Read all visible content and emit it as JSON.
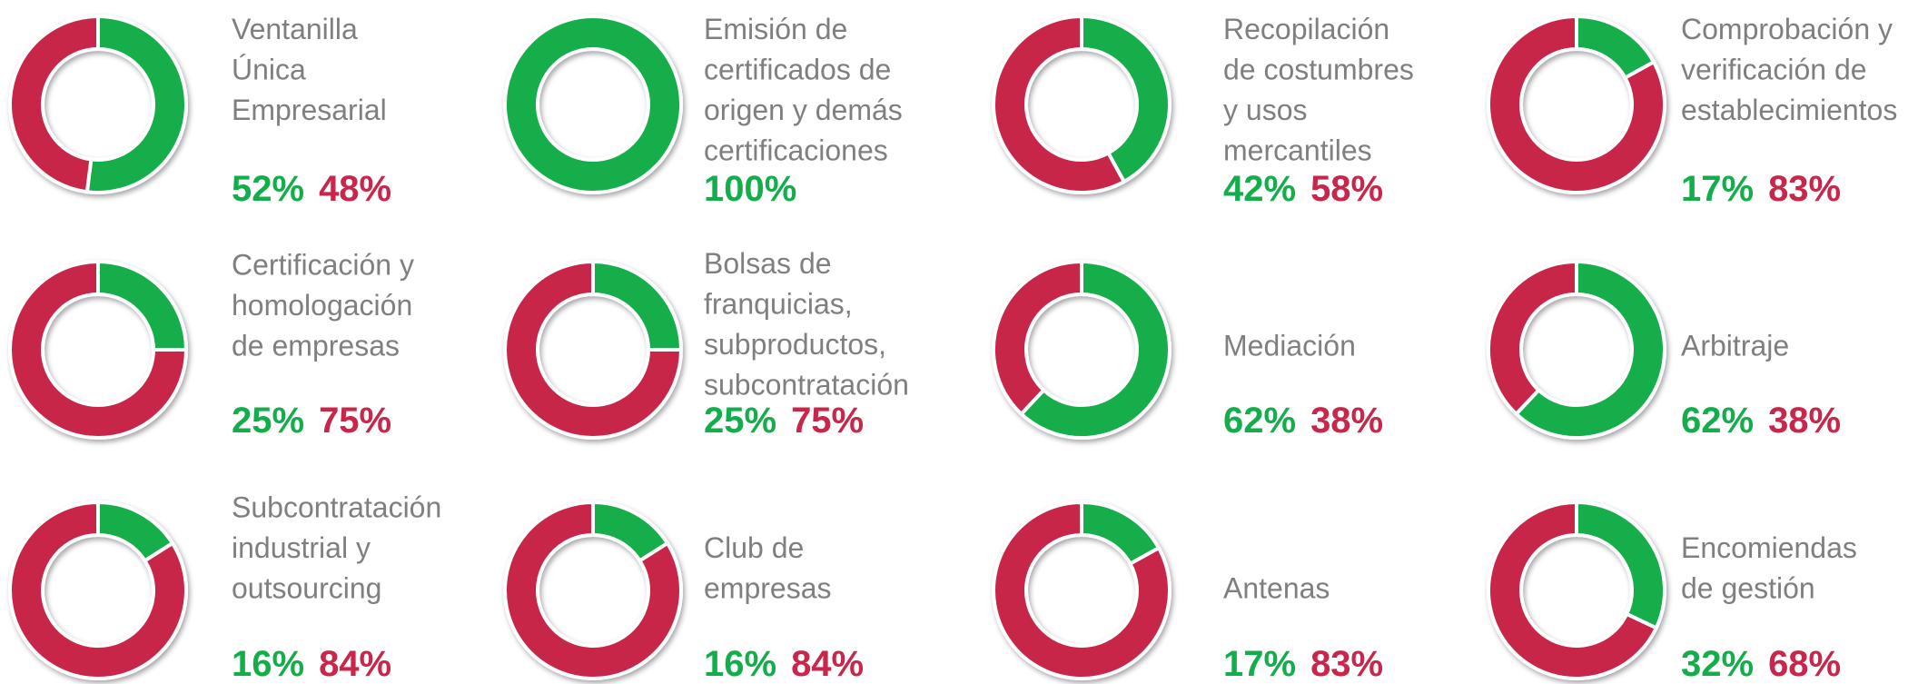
{
  "chart_data": [
    {
      "type": "pie",
      "title": [
        "Ventanilla",
        "Única",
        "Empresarial"
      ],
      "values": [
        52,
        48
      ],
      "value_labels": [
        "52%",
        "48%"
      ],
      "colors": [
        "#14ad4b",
        "#c8264a"
      ]
    },
    {
      "type": "pie",
      "title": [
        "Emisión de",
        "certificados de",
        "origen y demás",
        "certificaciones"
      ],
      "values": [
        100
      ],
      "value_labels": [
        "100%"
      ],
      "colors": [
        "#14ad4b"
      ]
    },
    {
      "type": "pie",
      "title": [
        "Recopilación",
        "de costumbres",
        "y usos",
        "mercantiles"
      ],
      "values": [
        42,
        58
      ],
      "value_labels": [
        "42%",
        "58%"
      ],
      "colors": [
        "#14ad4b",
        "#c8264a"
      ]
    },
    {
      "type": "pie",
      "title": [
        "Comprobación y",
        "verificación de",
        "establecimientos"
      ],
      "values": [
        17,
        83
      ],
      "value_labels": [
        "17%",
        "83%"
      ],
      "colors": [
        "#14ad4b",
        "#c8264a"
      ]
    },
    {
      "type": "pie",
      "title": [
        "Certificación y",
        "homologación",
        "de empresas"
      ],
      "values": [
        25,
        75
      ],
      "value_labels": [
        "25%",
        "75%"
      ],
      "colors": [
        "#14ad4b",
        "#c8264a"
      ]
    },
    {
      "type": "pie",
      "title": [
        "Bolsas de",
        "franquicias,",
        "subproductos,",
        "subcontratación"
      ],
      "values": [
        25,
        75
      ],
      "value_labels": [
        "25%",
        "75%"
      ],
      "colors": [
        "#14ad4b",
        "#c8264a"
      ]
    },
    {
      "type": "pie",
      "title": [
        "Mediación"
      ],
      "values": [
        62,
        38
      ],
      "value_labels": [
        "62%",
        "38%"
      ],
      "colors": [
        "#14ad4b",
        "#c8264a"
      ]
    },
    {
      "type": "pie",
      "title": [
        "Arbitraje"
      ],
      "values": [
        62,
        38
      ],
      "value_labels": [
        "62%",
        "38%"
      ],
      "colors": [
        "#14ad4b",
        "#c8264a"
      ]
    },
    {
      "type": "pie",
      "title": [
        "Subcontratación",
        "industrial y",
        "outsourcing"
      ],
      "values": [
        16,
        84
      ],
      "value_labels": [
        "16%",
        "84%"
      ],
      "colors": [
        "#14ad4b",
        "#c8264a"
      ]
    },
    {
      "type": "pie",
      "title": [
        "Club de",
        "empresas"
      ],
      "values": [
        16,
        84
      ],
      "value_labels": [
        "16%",
        "84%"
      ],
      "colors": [
        "#14ad4b",
        "#c8264a"
      ]
    },
    {
      "type": "pie",
      "title": [
        "Antenas"
      ],
      "values": [
        17,
        83
      ],
      "value_labels": [
        "17%",
        "83%"
      ],
      "colors": [
        "#14ad4b",
        "#c8264a"
      ]
    },
    {
      "type": "pie",
      "title": [
        "Encomiendas",
        "de gestión"
      ],
      "values": [
        32,
        68
      ],
      "value_labels": [
        "32%",
        "68%"
      ],
      "colors": [
        "#14ad4b",
        "#c8264a"
      ]
    }
  ]
}
